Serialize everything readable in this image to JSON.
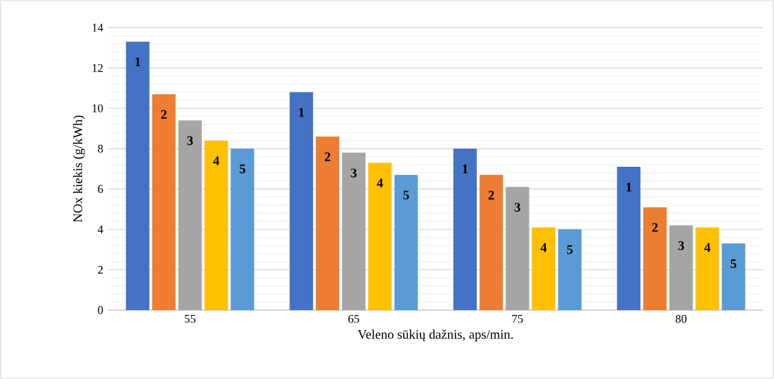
{
  "chart_data": {
    "type": "bar",
    "xlabel": "Veleno sūkių dažnis, aps/min.",
    "ylabel": "NOx kiekis (g/kWh)",
    "categories": [
      "55",
      "65",
      "75",
      "80"
    ],
    "series": [
      {
        "name": "1",
        "color": "#4472c4",
        "values": [
          13.3,
          10.8,
          8.0,
          7.1
        ]
      },
      {
        "name": "2",
        "color": "#ed7d31",
        "values": [
          10.7,
          8.6,
          6.7,
          5.1
        ]
      },
      {
        "name": "3",
        "color": "#a5a5a5",
        "values": [
          9.4,
          7.8,
          6.1,
          4.2
        ]
      },
      {
        "name": "4",
        "color": "#ffc000",
        "values": [
          8.4,
          7.3,
          4.1,
          4.1
        ]
      },
      {
        "name": "5",
        "color": "#5b9bd5",
        "values": [
          8.0,
          6.7,
          4.0,
          3.3
        ]
      }
    ],
    "ylim": [
      0,
      14
    ],
    "yticks": [
      0,
      2,
      4,
      6,
      8,
      10,
      12,
      14
    ],
    "grid": "y"
  }
}
